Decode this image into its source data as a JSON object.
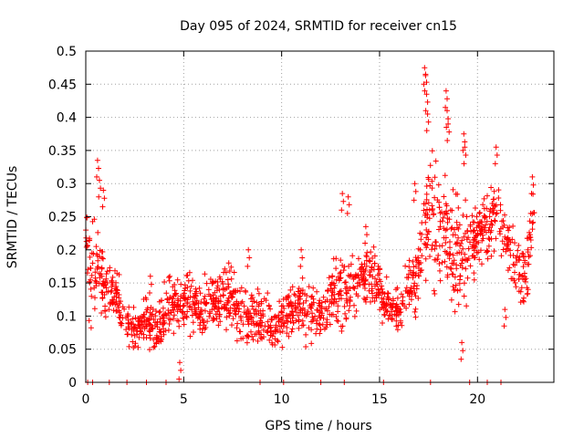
{
  "chart_data": {
    "type": "scatter",
    "title": "Day 095 of 2024, SRMTID for receiver cn15",
    "xlabel": "GPS time / hours",
    "ylabel": "SRMTID / TECUs",
    "xlim": [
      0,
      23.9
    ],
    "ylim": [
      0,
      0.5
    ],
    "xticks": [
      0,
      5,
      10,
      15,
      20
    ],
    "xtick_labels": [
      "0",
      "5",
      "10",
      "15",
      "20"
    ],
    "yticks": [
      0,
      0.05,
      0.1,
      0.15,
      0.2,
      0.25,
      0.3,
      0.35,
      0.4,
      0.45,
      0.5
    ],
    "ytick_labels": [
      "0",
      "0.05",
      "0.1",
      "0.15",
      "0.2",
      "0.25",
      "0.3",
      "0.35",
      "0.4",
      "0.45",
      "0.5"
    ],
    "grid": true,
    "marker": "+",
    "color": "#ff0000",
    "series": [
      {
        "name": "SRMTID",
        "trend_x": [
          0.0,
          0.3,
          0.6,
          1.0,
          1.5,
          2.0,
          2.5,
          3.0,
          3.5,
          4.0,
          4.5,
          5.0,
          5.5,
          6.0,
          6.5,
          7.0,
          7.5,
          8.0,
          8.5,
          9.0,
          9.5,
          10.0,
          10.5,
          11.0,
          11.5,
          12.0,
          12.5,
          13.0,
          13.5,
          14.0,
          14.5,
          15.0,
          15.5,
          16.0,
          16.5,
          17.0,
          17.5,
          18.0,
          18.5,
          19.0,
          19.5,
          20.0,
          20.5,
          21.0,
          21.5,
          22.0,
          22.5,
          22.9
        ],
        "trend_y": [
          0.2,
          0.16,
          0.17,
          0.14,
          0.14,
          0.09,
          0.08,
          0.09,
          0.08,
          0.1,
          0.12,
          0.12,
          0.12,
          0.11,
          0.12,
          0.13,
          0.12,
          0.1,
          0.1,
          0.1,
          0.08,
          0.09,
          0.11,
          0.11,
          0.1,
          0.1,
          0.12,
          0.14,
          0.14,
          0.15,
          0.17,
          0.14,
          0.11,
          0.11,
          0.14,
          0.16,
          0.25,
          0.22,
          0.22,
          0.18,
          0.2,
          0.22,
          0.23,
          0.26,
          0.22,
          0.17,
          0.17,
          0.24
        ],
        "spread": [
          0.04,
          0.06,
          0.05,
          0.03,
          0.03,
          0.02,
          0.02,
          0.03,
          0.03,
          0.03,
          0.03,
          0.03,
          0.03,
          0.03,
          0.03,
          0.03,
          0.03,
          0.03,
          0.03,
          0.03,
          0.02,
          0.02,
          0.03,
          0.03,
          0.03,
          0.02,
          0.03,
          0.04,
          0.04,
          0.03,
          0.03,
          0.03,
          0.02,
          0.02,
          0.03,
          0.04,
          0.08,
          0.07,
          0.07,
          0.06,
          0.05,
          0.04,
          0.04,
          0.04,
          0.04,
          0.03,
          0.03,
          0.04
        ],
        "peaks": [
          {
            "x": 0.6,
            "y": 0.335
          },
          {
            "x": 0.7,
            "y": 0.305
          },
          {
            "x": 0.9,
            "y": 0.29
          },
          {
            "x": 3.3,
            "y": 0.16
          },
          {
            "x": 4.8,
            "y": 0.03
          },
          {
            "x": 7.3,
            "y": 0.18
          },
          {
            "x": 8.3,
            "y": 0.2
          },
          {
            "x": 11.0,
            "y": 0.2
          },
          {
            "x": 13.1,
            "y": 0.285
          },
          {
            "x": 13.4,
            "y": 0.28
          },
          {
            "x": 14.3,
            "y": 0.235
          },
          {
            "x": 16.8,
            "y": 0.3
          },
          {
            "x": 17.3,
            "y": 0.475
          },
          {
            "x": 17.35,
            "y": 0.465
          },
          {
            "x": 17.4,
            "y": 0.435
          },
          {
            "x": 17.45,
            "y": 0.405
          },
          {
            "x": 18.4,
            "y": 0.44
          },
          {
            "x": 18.45,
            "y": 0.41
          },
          {
            "x": 18.5,
            "y": 0.39
          },
          {
            "x": 19.2,
            "y": 0.06
          },
          {
            "x": 19.3,
            "y": 0.375
          },
          {
            "x": 19.35,
            "y": 0.355
          },
          {
            "x": 20.95,
            "y": 0.355
          },
          {
            "x": 21.4,
            "y": 0.11
          },
          {
            "x": 22.8,
            "y": 0.31
          }
        ],
        "zeros_x": [
          0.1,
          0.35,
          1.2,
          2.1,
          3.1,
          4.1,
          8.9,
          10.1,
          12.0,
          13.2,
          15.2,
          17.6,
          19.6,
          20.5,
          21.2
        ]
      }
    ]
  }
}
